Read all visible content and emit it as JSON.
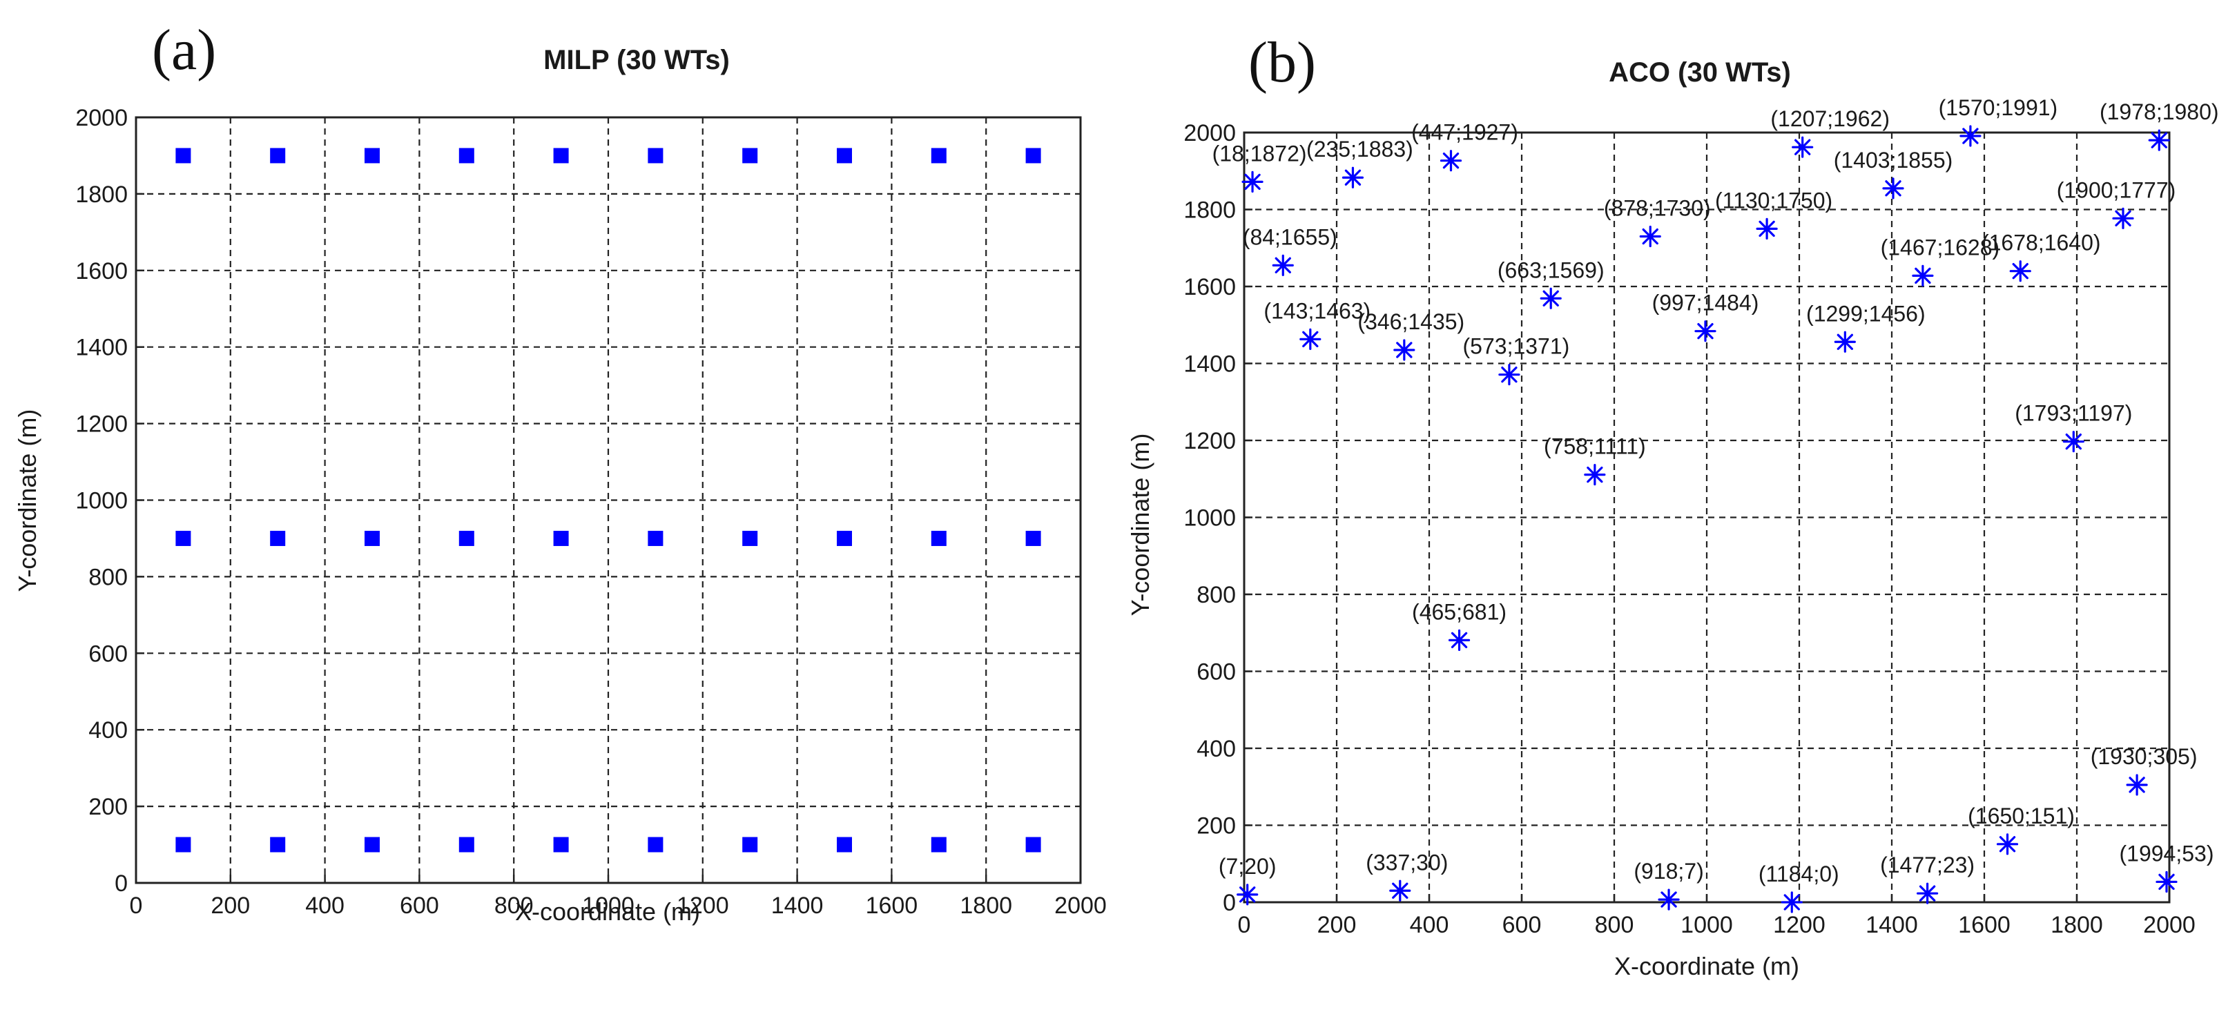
{
  "chart_data": [
    {
      "panel": "(a)",
      "type": "scatter",
      "title": "MILP (30 WTs)",
      "xlabel": "X-coordinate (m)",
      "ylabel": "Y-coordinate (m)",
      "xlim": [
        0,
        2000
      ],
      "ylim": [
        0,
        2000
      ],
      "xticks": [
        0,
        200,
        400,
        600,
        800,
        1000,
        1200,
        1400,
        1600,
        1800,
        2000
      ],
      "yticks": [
        0,
        200,
        400,
        600,
        800,
        1000,
        1200,
        1400,
        1600,
        1800,
        2000
      ],
      "grid": true,
      "marker": "square",
      "color": "#0000ff",
      "points": [
        {
          "x": 100,
          "y": 1900
        },
        {
          "x": 300,
          "y": 1900
        },
        {
          "x": 500,
          "y": 1900
        },
        {
          "x": 700,
          "y": 1900
        },
        {
          "x": 900,
          "y": 1900
        },
        {
          "x": 1100,
          "y": 1900
        },
        {
          "x": 1300,
          "y": 1900
        },
        {
          "x": 1500,
          "y": 1900
        },
        {
          "x": 1700,
          "y": 1900
        },
        {
          "x": 1900,
          "y": 1900
        },
        {
          "x": 100,
          "y": 900
        },
        {
          "x": 300,
          "y": 900
        },
        {
          "x": 500,
          "y": 900
        },
        {
          "x": 700,
          "y": 900
        },
        {
          "x": 900,
          "y": 900
        },
        {
          "x": 1100,
          "y": 900
        },
        {
          "x": 1300,
          "y": 900
        },
        {
          "x": 1500,
          "y": 900
        },
        {
          "x": 1700,
          "y": 900
        },
        {
          "x": 1900,
          "y": 900
        },
        {
          "x": 100,
          "y": 100
        },
        {
          "x": 300,
          "y": 100
        },
        {
          "x": 500,
          "y": 100
        },
        {
          "x": 700,
          "y": 100
        },
        {
          "x": 900,
          "y": 100
        },
        {
          "x": 1100,
          "y": 100
        },
        {
          "x": 1300,
          "y": 100
        },
        {
          "x": 1500,
          "y": 100
        },
        {
          "x": 1700,
          "y": 100
        },
        {
          "x": 1900,
          "y": 100
        }
      ]
    },
    {
      "panel": "(b)",
      "type": "scatter",
      "title": "ACO (30 WTs)",
      "xlabel": "X-coordinate (m)",
      "ylabel": "Y-coordinate (m)",
      "xlim": [
        0,
        2000
      ],
      "ylim": [
        0,
        2000
      ],
      "xticks": [
        0,
        200,
        400,
        600,
        800,
        1000,
        1200,
        1400,
        1600,
        1800,
        2000
      ],
      "yticks": [
        0,
        200,
        400,
        600,
        800,
        1000,
        1200,
        1400,
        1600,
        1800,
        2000
      ],
      "grid": true,
      "marker": "asterisk",
      "color": "#0000ff",
      "points": [
        {
          "x": 18,
          "y": 1872,
          "label": "(18;1872)"
        },
        {
          "x": 235,
          "y": 1883,
          "label": "(235;1883)"
        },
        {
          "x": 447,
          "y": 1927,
          "label": "(447;1927)"
        },
        {
          "x": 1207,
          "y": 1962,
          "label": "(1207;1962)"
        },
        {
          "x": 1570,
          "y": 1991,
          "label": "(1570;1991)"
        },
        {
          "x": 1978,
          "y": 1980,
          "label": "(1978;1980)"
        },
        {
          "x": 1403,
          "y": 1855,
          "label": "(1403;1855)"
        },
        {
          "x": 878,
          "y": 1730,
          "label": "(878;1730)"
        },
        {
          "x": 1130,
          "y": 1750,
          "label": "(1130;1750)"
        },
        {
          "x": 1900,
          "y": 1777,
          "label": "(1900;1777)"
        },
        {
          "x": 84,
          "y": 1655,
          "label": "(84;1655)"
        },
        {
          "x": 1467,
          "y": 1628,
          "label": "(1467;1628)"
        },
        {
          "x": 1678,
          "y": 1640,
          "label": "(1678;1640)"
        },
        {
          "x": 663,
          "y": 1569,
          "label": "(663;1569)"
        },
        {
          "x": 143,
          "y": 1463,
          "label": "(143;1463)"
        },
        {
          "x": 346,
          "y": 1435,
          "label": "(346;1435)"
        },
        {
          "x": 997,
          "y": 1484,
          "label": "(997;1484)"
        },
        {
          "x": 1299,
          "y": 1456,
          "label": "(1299;1456)"
        },
        {
          "x": 573,
          "y": 1371,
          "label": "(573;1371)"
        },
        {
          "x": 1793,
          "y": 1197,
          "label": "(1793;1197)"
        },
        {
          "x": 758,
          "y": 1111,
          "label": "(758;1111)"
        },
        {
          "x": 465,
          "y": 681,
          "label": "(465;681)"
        },
        {
          "x": 1930,
          "y": 305,
          "label": "(1930;305)"
        },
        {
          "x": 1650,
          "y": 151,
          "label": "(1650;151)"
        },
        {
          "x": 1994,
          "y": 53,
          "label": "(1994;53)"
        },
        {
          "x": 7,
          "y": 20,
          "label": "(7;20)"
        },
        {
          "x": 337,
          "y": 30,
          "label": "(337;30)"
        },
        {
          "x": 918,
          "y": 7,
          "label": "(918;7)"
        },
        {
          "x": 1184,
          "y": 0,
          "label": "(1184;0)"
        },
        {
          "x": 1477,
          "y": 23,
          "label": "(1477;23)"
        }
      ]
    }
  ]
}
